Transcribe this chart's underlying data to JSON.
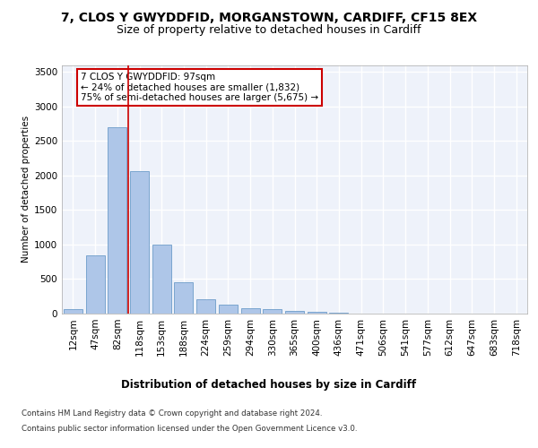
{
  "title1": "7, CLOS Y GWYDDFID, MORGANSTOWN, CARDIFF, CF15 8EX",
  "title2": "Size of property relative to detached houses in Cardiff",
  "xlabel": "Distribution of detached houses by size in Cardiff",
  "ylabel": "Number of detached properties",
  "categories": [
    "12sqm",
    "47sqm",
    "82sqm",
    "118sqm",
    "153sqm",
    "188sqm",
    "224sqm",
    "259sqm",
    "294sqm",
    "330sqm",
    "365sqm",
    "400sqm",
    "436sqm",
    "471sqm",
    "506sqm",
    "541sqm",
    "577sqm",
    "612sqm",
    "647sqm",
    "683sqm",
    "718sqm"
  ],
  "values": [
    60,
    840,
    2700,
    2060,
    1000,
    450,
    210,
    135,
    80,
    60,
    45,
    20,
    10,
    5,
    3,
    1,
    1,
    0,
    0,
    0,
    0
  ],
  "bar_color": "#aec6e8",
  "bar_edge_color": "#5a8fc2",
  "red_line_x": 2.5,
  "annotation_line1": "7 CLOS Y GWYDDFID: 97sqm",
  "annotation_line2": "← 24% of detached houses are smaller (1,832)",
  "annotation_line3": "75% of semi-detached houses are larger (5,675) →",
  "annotation_box_edge": "#cc0000",
  "footer1": "Contains HM Land Registry data © Crown copyright and database right 2024.",
  "footer2": "Contains public sector information licensed under the Open Government Licence v3.0.",
  "ylim": [
    0,
    3600
  ],
  "yticks": [
    0,
    500,
    1000,
    1500,
    2000,
    2500,
    3000,
    3500
  ],
  "bg_color": "#eef2fa",
  "grid_color": "#ffffff",
  "title1_fontsize": 10,
  "title2_fontsize": 9,
  "bar_width": 0.85
}
